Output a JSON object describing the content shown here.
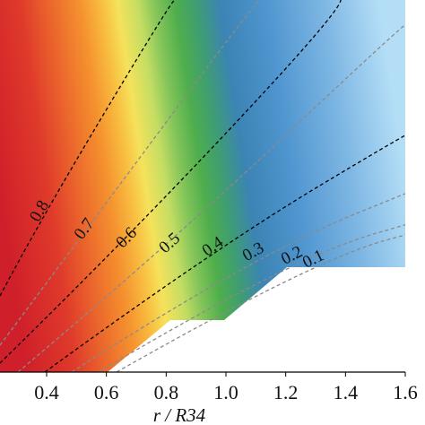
{
  "chart_data": {
    "type": "contour",
    "xlabel": "r / R34",
    "xlim": [
      0.244,
      1.6
    ],
    "xticks": [
      0.4,
      0.6,
      0.8,
      {
        "value": 1,
        "label": "1.0"
      },
      1.2,
      1.4,
      1.6
    ],
    "levels": [
      0.8,
      0.7,
      0.6,
      0.5,
      0.4,
      0.3,
      0.2,
      0.1
    ],
    "line_colors": [
      "#000000",
      "#8a8a8a",
      "#000000",
      "#8a8a8a",
      "#000000",
      "#8a8a8a",
      "#8a8a8a",
      "#8a8a8a"
    ]
  }
}
